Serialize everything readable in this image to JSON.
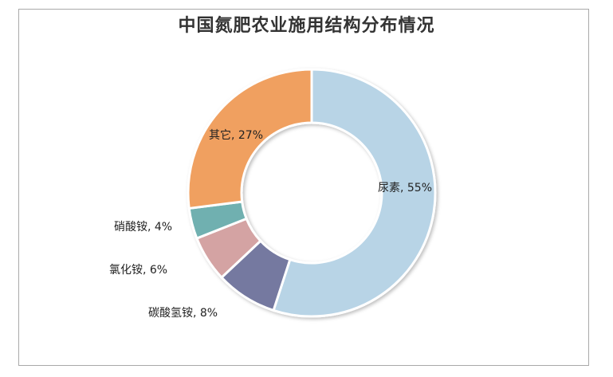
{
  "chart_data": {
    "type": "pie",
    "title": "中国氮肥农业施用结构分布情况",
    "donut": true,
    "slices": [
      {
        "label": "尿素",
        "value": 55,
        "display": "尿素, 55%",
        "color": "#b8d4e6"
      },
      {
        "label": "碳酸氢铵",
        "value": 8,
        "display": "碳酸氢铵, 8%",
        "color": "#7479a0"
      },
      {
        "label": "氯化铵",
        "value": 6,
        "display": "氯化铵, 6%",
        "color": "#d4a3a3"
      },
      {
        "label": "硝酸铵",
        "value": 4,
        "display": "硝酸铵, 4%",
        "color": "#6fb0b0"
      },
      {
        "label": "其它",
        "value": 27,
        "display": "其它, 27%",
        "color": "#f0a060"
      }
    ]
  }
}
